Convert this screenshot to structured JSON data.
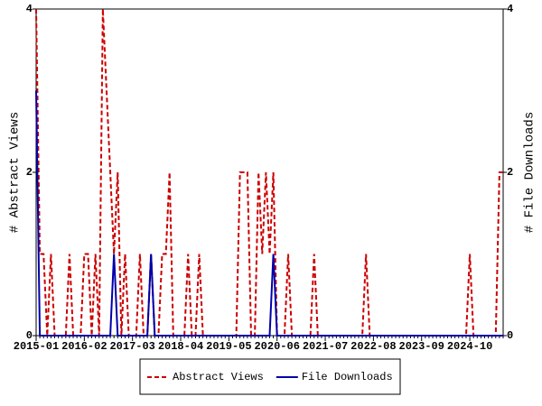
{
  "chart_data": {
    "type": "line",
    "categories": [
      "2015-01",
      null,
      null,
      null,
      null,
      null,
      null,
      null,
      null,
      null,
      null,
      null,
      null,
      "2016-02",
      null,
      null,
      null,
      null,
      null,
      null,
      null,
      null,
      null,
      null,
      null,
      null,
      "2017-03",
      null,
      null,
      null,
      null,
      null,
      null,
      null,
      null,
      null,
      null,
      null,
      null,
      "2018-04",
      null,
      null,
      null,
      null,
      null,
      null,
      null,
      null,
      null,
      null,
      null,
      null,
      "2019-05",
      null,
      null,
      null,
      null,
      null,
      null,
      null,
      null,
      null,
      null,
      null,
      null,
      "2020-06",
      null,
      null,
      null,
      null,
      null,
      null,
      null,
      null,
      null,
      null,
      null,
      null,
      "2021-07",
      null,
      null,
      null,
      null,
      null,
      null,
      null,
      null,
      null,
      null,
      null,
      null,
      "2022-08",
      null,
      null,
      null,
      null,
      null,
      null,
      null,
      null,
      null,
      null,
      null,
      null,
      "2023-09",
      null,
      null,
      null,
      null,
      null,
      null,
      null,
      null,
      null,
      null,
      null,
      null,
      "2024-10",
      null,
      null,
      null,
      null,
      null,
      null,
      null,
      null,
      null
    ],
    "series": [
      {
        "name": "Abstract Views",
        "color": "#cc0000",
        "dashed": true,
        "values": [
          4,
          1,
          1,
          0,
          1,
          0,
          0,
          0,
          0,
          1,
          0,
          0,
          0,
          1,
          1,
          0,
          1,
          0,
          4,
          3,
          2,
          1,
          2,
          0,
          1,
          0,
          0,
          0,
          1,
          0,
          0,
          1,
          0,
          0,
          1,
          1,
          2,
          0,
          0,
          0,
          0,
          1,
          0,
          0,
          1,
          0,
          0,
          0,
          0,
          0,
          0,
          0,
          0,
          0,
          0,
          2,
          2,
          2,
          0,
          0,
          2,
          1,
          2,
          1,
          2,
          0,
          0,
          0,
          1,
          0,
          0,
          0,
          0,
          0,
          0,
          1,
          0,
          0,
          0,
          0,
          0,
          0,
          0,
          0,
          0,
          0,
          0,
          0,
          0,
          1,
          0,
          0,
          0,
          0,
          0,
          0,
          0,
          0,
          0,
          0,
          0,
          0,
          0,
          0,
          0,
          0,
          0,
          0,
          0,
          0,
          0,
          0,
          0,
          0,
          0,
          0,
          0,
          1,
          0,
          0,
          0,
          0,
          0,
          0,
          0,
          2,
          2
        ]
      },
      {
        "name": "File Downloads",
        "color": "#0000aa",
        "axis": "y2",
        "values": [
          3,
          0,
          0,
          0,
          0,
          0,
          0,
          0,
          0,
          0,
          0,
          0,
          0,
          0,
          0,
          0,
          0,
          0,
          0,
          0,
          0,
          1,
          0,
          0,
          0,
          0,
          0,
          0,
          0,
          0,
          0,
          1,
          0,
          0,
          0,
          0,
          0,
          0,
          0,
          0,
          0,
          0,
          0,
          0,
          0,
          0,
          0,
          0,
          0,
          0,
          0,
          0,
          0,
          0,
          0,
          0,
          0,
          0,
          0,
          0,
          0,
          0,
          0,
          0,
          1,
          0,
          0,
          0,
          0,
          0,
          0,
          0,
          0,
          0,
          0,
          0,
          0,
          0,
          0,
          0,
          0,
          0,
          0,
          0,
          0,
          0,
          0,
          0,
          0,
          0,
          0,
          0,
          0,
          0,
          0,
          0,
          0,
          0,
          0,
          0,
          0,
          0,
          0,
          0,
          0,
          0,
          0,
          0,
          0,
          0,
          0,
          0,
          0,
          0,
          0,
          0,
          0,
          0,
          0,
          0,
          0,
          0,
          0,
          0,
          0,
          0,
          0
        ]
      }
    ],
    "y_label": "# Abstract Views",
    "y2_label": "# File Downloads",
    "ylim": [
      0,
      4
    ],
    "yticks": [
      0,
      2,
      4
    ],
    "y2lim": [
      0,
      4
    ],
    "y2ticks": [
      0,
      2,
      4
    ],
    "legend": "bottom"
  }
}
